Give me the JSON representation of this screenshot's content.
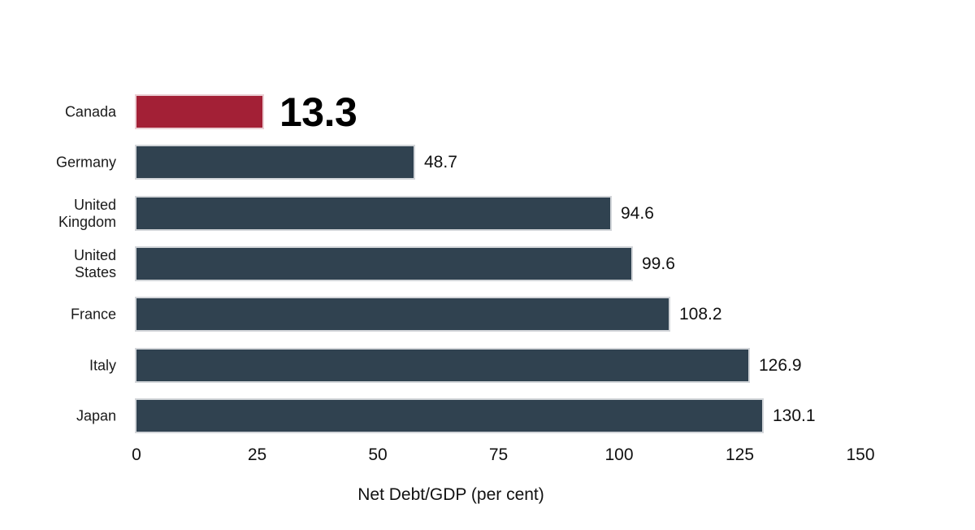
{
  "chart_data": {
    "type": "bar",
    "orientation": "horizontal",
    "title": "",
    "xlabel": "Net Debt/GDP (per cent)",
    "categories": [
      "Canada",
      "Germany",
      "United Kingdom",
      "United States",
      "France",
      "Italy",
      "Japan"
    ],
    "values": [
      13.3,
      48.7,
      94.6,
      99.6,
      108.2,
      126.9,
      130.1
    ],
    "highlight_category": "Canada",
    "x_ticks": [
      0,
      25,
      50,
      75,
      100,
      125,
      150
    ],
    "xlim": [
      0,
      150
    ],
    "grid": false,
    "legend": "none",
    "colors": {
      "highlight_bar": "#a32036",
      "default_bar": "#304250",
      "text": "#111111",
      "background": "#ffffff"
    }
  }
}
